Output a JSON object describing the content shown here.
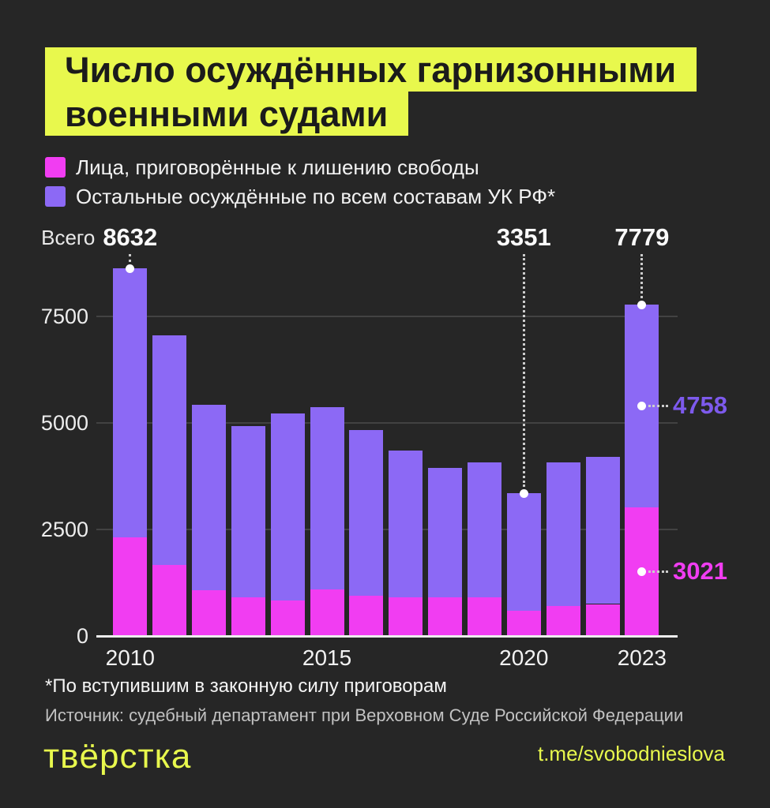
{
  "title": {
    "line1": "Число осуждённых гарнизонными",
    "line2": "военными судами"
  },
  "legend": [
    {
      "label": "Лица, приговорённые к лишению свободы",
      "color": "#F13DF2"
    },
    {
      "label": "Остальные осуждённые по всем составам УК РФ*",
      "color": "#8C69F5"
    }
  ],
  "chart_data": {
    "type": "bar",
    "stacked": true,
    "title": "Число осуждённых гарнизонными военными судами",
    "categories": [
      2010,
      2011,
      2012,
      2013,
      2014,
      2015,
      2016,
      2017,
      2018,
      2019,
      2020,
      2021,
      2022,
      2023
    ],
    "series": [
      {
        "name": "Лица, приговорённые к лишению свободы",
        "color": "#F13DF2",
        "values": [
          2310,
          1660,
          1070,
          900,
          830,
          1090,
          950,
          900,
          900,
          900,
          590,
          700,
          750,
          3021
        ]
      },
      {
        "name": "Остальные осуждённые по всем составам УК РФ*",
        "color": "#8C69F5",
        "values": [
          6322,
          5390,
          4350,
          4020,
          4400,
          4280,
          3880,
          3450,
          3050,
          3170,
          2761,
          3370,
          3450,
          4758
        ]
      }
    ],
    "totals": [
      8632,
      7050,
      5420,
      4920,
      5230,
      5370,
      4830,
      4350,
      3950,
      4070,
      3351,
      4070,
      4200,
      7779
    ],
    "yticks": [
      0,
      2500,
      5000,
      7500
    ],
    "ylim": [
      0,
      9000
    ],
    "grid": true,
    "legend_position": "top-left",
    "xticks": [
      {
        "label": "2010",
        "index": 0
      },
      {
        "label": "2015",
        "index": 5
      },
      {
        "label": "2020",
        "index": 10
      },
      {
        "label": "2023",
        "index": 13
      }
    ],
    "total_annotations": [
      {
        "text": "8632",
        "prefix": "Всего",
        "index": 0
      },
      {
        "text": "3351",
        "prefix": "",
        "index": 10
      },
      {
        "text": "7779",
        "prefix": "",
        "index": 13
      }
    ],
    "segment_annotations": [
      {
        "text": "4758",
        "series": 1,
        "index": 13,
        "color": "#7D5AEC"
      },
      {
        "text": "3021",
        "series": 0,
        "index": 13,
        "color": "#F13DF2"
      }
    ]
  },
  "footnote": "*По вступившим в законную силу приговорам",
  "source": "Источник: судебный департамент при Верховном Суде Российской Федерации",
  "logo": "твёрстка",
  "link": "t.me/svobodnieslova",
  "colors": {
    "background": "#262626",
    "accent_yellow": "#E8F84D",
    "magenta": "#F13DF2",
    "purple": "#8C69F5",
    "text": "#F2F2F2"
  }
}
